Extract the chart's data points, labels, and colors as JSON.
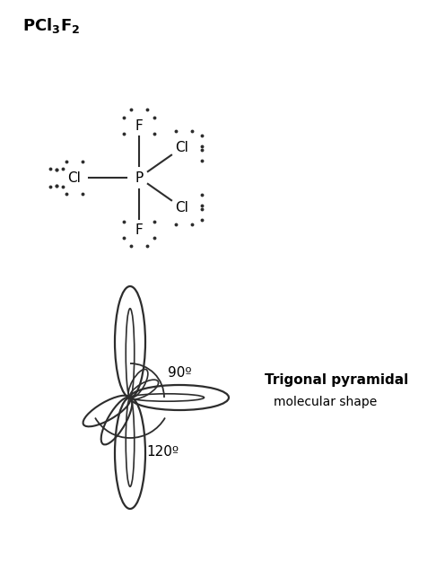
{
  "bg_color": "#ffffff",
  "line_color": "#2d2d2d",
  "text_color": "#000000",
  "title_text": "PCl$_3$F$_2$",
  "angle_90_label": "90º",
  "angle_120_label": "120º",
  "shape_label_bold": "Trigonal pyramidal",
  "shape_label_normal": "molecular shape",
  "fig_width": 4.86,
  "fig_height": 6.53,
  "dpi": 100
}
